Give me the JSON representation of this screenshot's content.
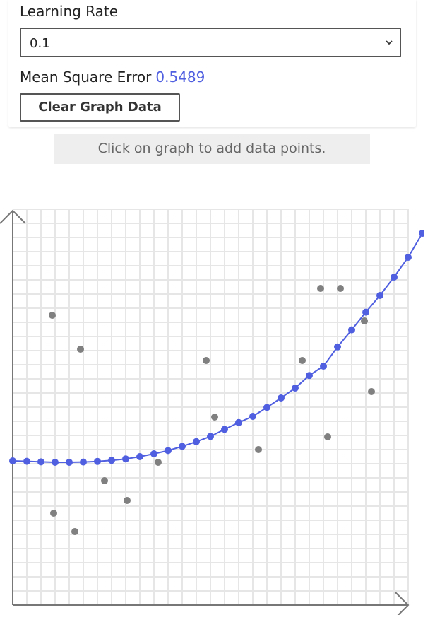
{
  "controls": {
    "learning_rate_label": "Learning Rate",
    "learning_rate_value": "0.1",
    "mse_label": "Mean Square Error",
    "mse_value": "0.5489",
    "clear_button_label": "Clear Graph Data"
  },
  "hint": {
    "text": "Click on graph to add data points."
  },
  "colors": {
    "accent": "#4f5fe0",
    "data_point": "#808080",
    "grid": "#e6e6e6",
    "axis": "#777777"
  },
  "chart_data": {
    "type": "scatter",
    "title": "",
    "xlabel": "",
    "ylabel": "",
    "xlim": [
      0,
      28
    ],
    "ylim": [
      0,
      28
    ],
    "grid": true,
    "series": [
      {
        "kind": "points",
        "points": [
          [
            2.8,
            20.5
          ],
          [
            4.8,
            18.1
          ],
          [
            2.9,
            6.5
          ],
          [
            4.4,
            5.2
          ],
          [
            6.5,
            8.8
          ],
          [
            8.1,
            7.4
          ],
          [
            10.3,
            10.1
          ],
          [
            13.7,
            17.3
          ],
          [
            14.3,
            13.3
          ],
          [
            17.4,
            11.0
          ],
          [
            20.5,
            17.3
          ],
          [
            21.8,
            22.4
          ],
          [
            22.3,
            11.9
          ],
          [
            23.2,
            22.4
          ],
          [
            24.9,
            20.1
          ],
          [
            25.4,
            15.1
          ]
        ]
      },
      {
        "kind": "fit-line",
        "points": [
          [
            0,
            10.2
          ],
          [
            1,
            10.17
          ],
          [
            2,
            10.13
          ],
          [
            3,
            10.1
          ],
          [
            4,
            10.1
          ],
          [
            5,
            10.12
          ],
          [
            6,
            10.16
          ],
          [
            7,
            10.24
          ],
          [
            8,
            10.34
          ],
          [
            9,
            10.5
          ],
          [
            10,
            10.7
          ],
          [
            11,
            10.93
          ],
          [
            12,
            11.23
          ],
          [
            13,
            11.56
          ],
          [
            14,
            11.93
          ],
          [
            15,
            12.43
          ],
          [
            16,
            12.91
          ],
          [
            17,
            13.35
          ],
          [
            18,
            13.98
          ],
          [
            19,
            14.65
          ],
          [
            20,
            15.35
          ],
          [
            21,
            16.24
          ],
          [
            22,
            16.9
          ],
          [
            23,
            18.26
          ],
          [
            24,
            19.47
          ],
          [
            25,
            20.72
          ],
          [
            26,
            21.9
          ],
          [
            27,
            23.2
          ],
          [
            28,
            24.6
          ],
          [
            29,
            26.3
          ]
        ]
      }
    ]
  }
}
